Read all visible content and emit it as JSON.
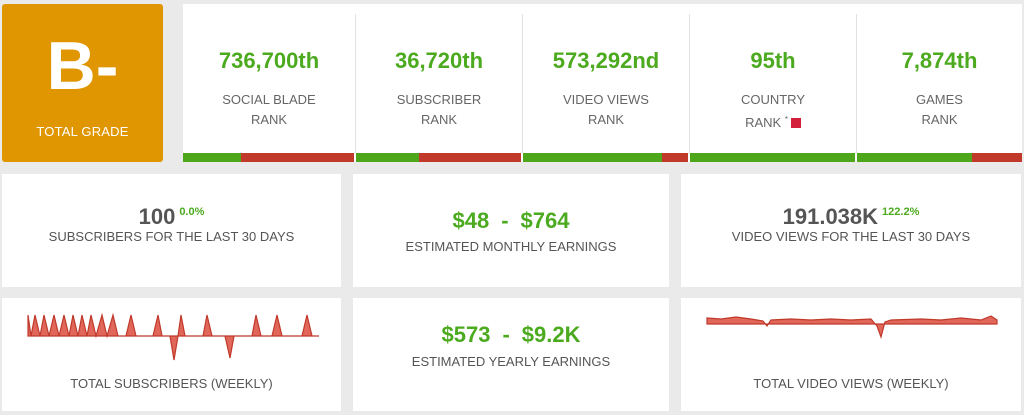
{
  "grade": {
    "letter": "B-",
    "label": "TOTAL GRADE",
    "color": "#df9600"
  },
  "ranks": [
    {
      "value": "736,700th",
      "line1": "SOCIAL BLADE",
      "line2": "RANK",
      "progress": 0.34
    },
    {
      "value": "36,720th",
      "line1": "SUBSCRIBER",
      "line2": "RANK",
      "progress": 0.38
    },
    {
      "value": "573,292nd",
      "line1": "VIDEO VIEWS",
      "line2": "RANK",
      "progress": 0.84
    },
    {
      "value": "95th",
      "line1": "COUNTRY",
      "line2": "RANK",
      "asterisk": "*",
      "progress": 1.0
    },
    {
      "value": "7,874th",
      "line1": "GAMES",
      "line2": "RANK",
      "progress": 0.7
    }
  ],
  "subscribers30": {
    "value": "100",
    "change": "0.0%",
    "label": "SUBSCRIBERS FOR THE LAST 30 DAYS"
  },
  "monthly": {
    "low": "$48",
    "sep": "-",
    "high": "$764",
    "label": "ESTIMATED MONTHLY EARNINGS"
  },
  "views30": {
    "value": "191.038K",
    "change": "122.2%",
    "label": "VIDEO VIEWS FOR THE LAST 30 DAYS"
  },
  "yearly": {
    "low": "$573",
    "sep": "-",
    "high": "$9.2K",
    "label": "ESTIMATED YEARLY EARNINGS"
  },
  "weeklySubs": {
    "label": "TOTAL SUBSCRIBERS (WEEKLY)"
  },
  "weeklyViews": {
    "label": "TOTAL VIDEO VIEWS (WEEKLY)"
  },
  "colors": {
    "green": "#4caa1f",
    "red": "#c0392b",
    "accent": "#df9600"
  }
}
